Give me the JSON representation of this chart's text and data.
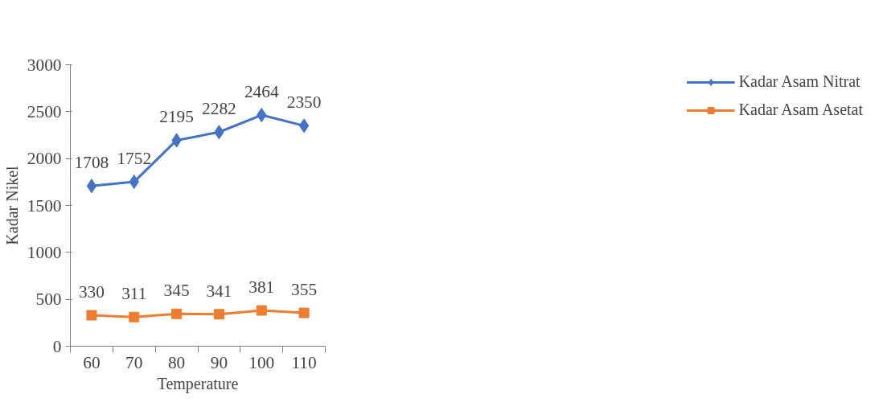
{
  "chart_data": {
    "type": "line",
    "xlabel": "Temperature",
    "ylabel": "Kadar Nikel",
    "categories": [
      "60",
      "70",
      "80",
      "90",
      "100",
      "110"
    ],
    "series": [
      {
        "name": "Kadar Asam Nitrat",
        "color": "#4472c4",
        "marker": "diamond",
        "values": [
          1708,
          1752,
          2195,
          2282,
          2464,
          2350
        ]
      },
      {
        "name": "Kadar Asam Asetat",
        "color": "#ed7d31",
        "marker": "square",
        "values": [
          330,
          311,
          345,
          341,
          381,
          355
        ]
      }
    ],
    "ylim": [
      0,
      3000
    ],
    "yticks": [
      0,
      500,
      1000,
      1500,
      2000,
      2500,
      3000
    ],
    "data_labels": true,
    "grid": false,
    "legend": "right",
    "line_style": "solid"
  }
}
